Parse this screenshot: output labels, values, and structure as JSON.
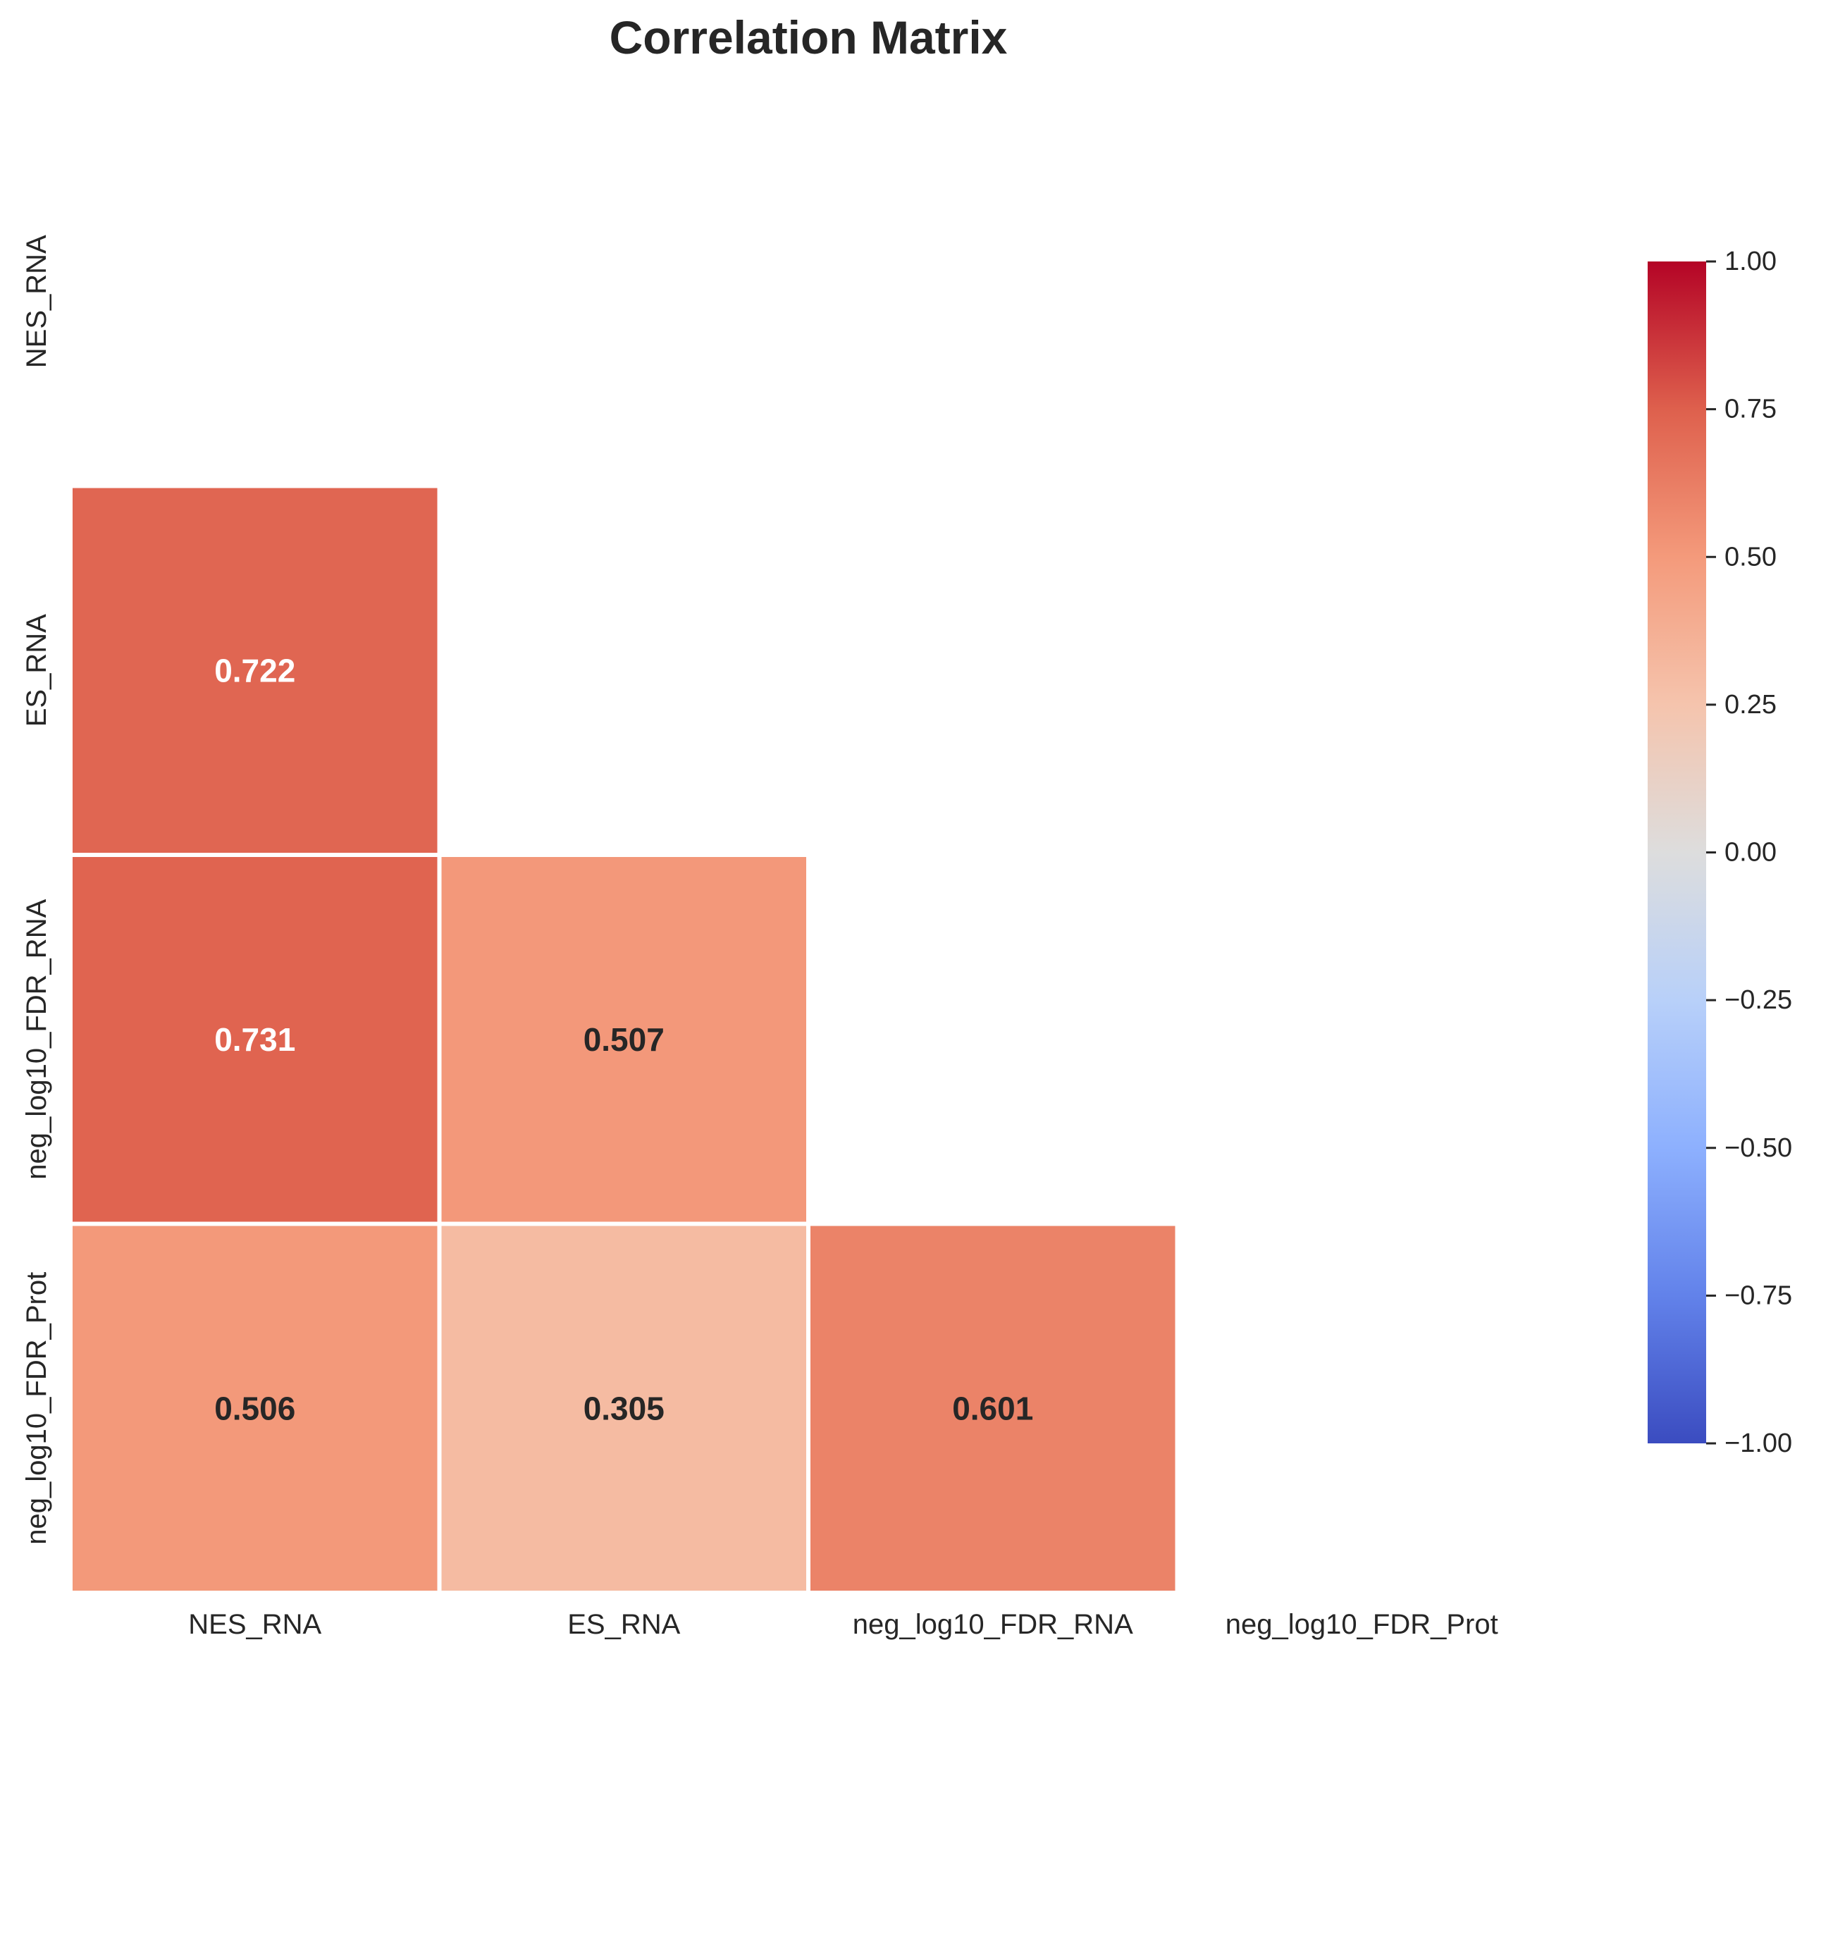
{
  "chart_data": {
    "type": "heatmap",
    "title": "Correlation Matrix",
    "variables": [
      "NES_RNA",
      "ES_RNA",
      "neg_log10_FDR_RNA",
      "neg_log10_FDR_Prot"
    ],
    "mask": "upper-triangle-including-diagonal",
    "cells": [
      {
        "row": 1,
        "col": 0,
        "value": 0.722,
        "label": "0.722"
      },
      {
        "row": 2,
        "col": 0,
        "value": 0.731,
        "label": "0.731"
      },
      {
        "row": 2,
        "col": 1,
        "value": 0.507,
        "label": "0.507"
      },
      {
        "row": 3,
        "col": 0,
        "value": 0.506,
        "label": "0.506"
      },
      {
        "row": 3,
        "col": 1,
        "value": 0.305,
        "label": "0.305"
      },
      {
        "row": 3,
        "col": 2,
        "value": 0.601,
        "label": "0.601"
      }
    ],
    "colormap": "coolwarm",
    "vmin": -1.0,
    "vmax": 1.0,
    "colorbar": {
      "ticks": [
        1.0,
        0.75,
        0.5,
        0.25,
        0.0,
        -0.25,
        -0.5,
        -0.75,
        -1.0
      ],
      "tick_labels": [
        "1.00",
        "0.75",
        "0.50",
        "0.25",
        "0.00",
        "−0.25",
        "−0.50",
        "−0.75",
        "−1.00"
      ]
    },
    "colors": {
      "text_dark": "#262626",
      "text_light": "#ffffff",
      "cell_border": "#ffffff"
    }
  }
}
